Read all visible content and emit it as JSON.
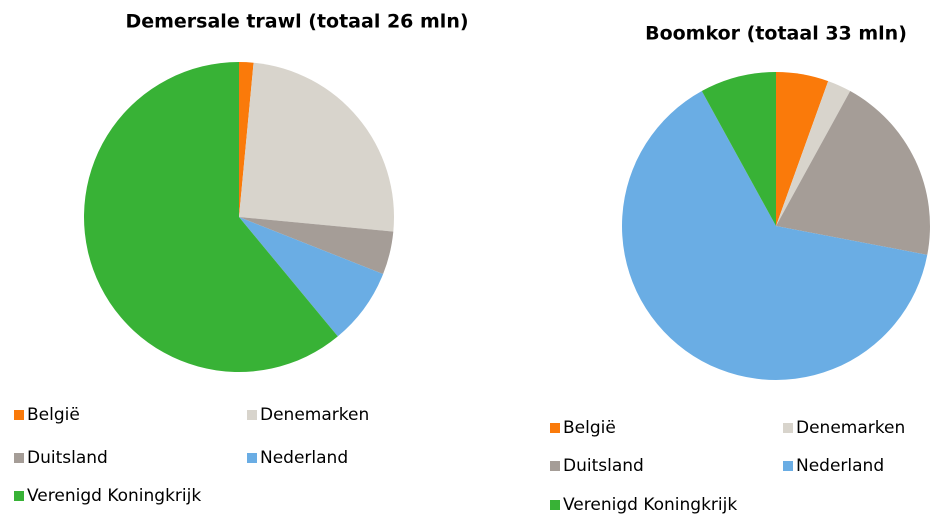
{
  "chart_data": [
    {
      "type": "pie",
      "title": "Demersale trawl (totaal 26 mln)",
      "categories": [
        "België",
        "Denemarken",
        "Duitsland",
        "Nederland",
        "Verenigd Koningkrijk"
      ],
      "values": [
        1.5,
        25,
        4.5,
        8,
        61
      ],
      "colors": [
        "#fa7a0a",
        "#d8d4cc",
        "#a59d97",
        "#6aade4",
        "#38b236"
      ]
    },
    {
      "type": "pie",
      "title": "Boomkor (totaal 33 mln)",
      "categories": [
        "België",
        "Denemarken",
        "Duitsland",
        "Nederland",
        "Verenigd Koningkrijk"
      ],
      "values": [
        5.5,
        2.5,
        20,
        64,
        8
      ],
      "colors": [
        "#fa7a0a",
        "#d8d4cc",
        "#a59d97",
        "#6aade4",
        "#38b236"
      ]
    }
  ]
}
